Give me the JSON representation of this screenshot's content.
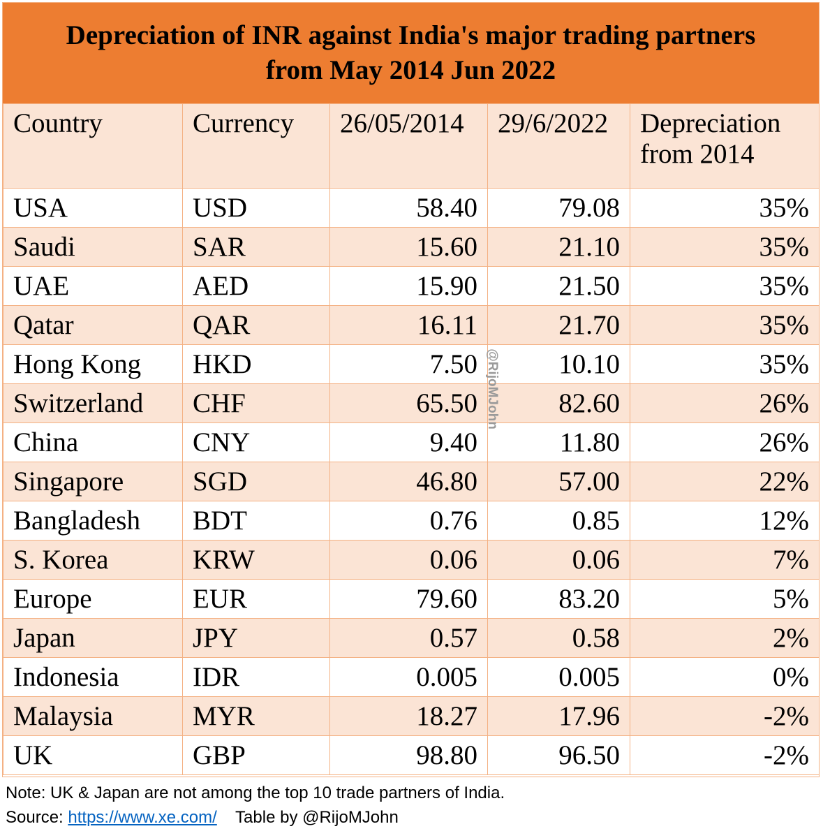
{
  "title": {
    "line1": "Depreciation of INR against India's major trading partners",
    "line2": "from May 2014 Jun 2022"
  },
  "table": {
    "headers": [
      "Country",
      "Currency",
      "26/05/2014",
      "29/6/2022",
      "Depreciation from 2014"
    ],
    "rows": [
      [
        "USA",
        "USD",
        "58.40",
        "79.08",
        "35%"
      ],
      [
        "Saudi",
        "SAR",
        "15.60",
        "21.10",
        "35%"
      ],
      [
        "UAE",
        "AED",
        "15.90",
        "21.50",
        "35%"
      ],
      [
        "Qatar",
        "QAR",
        "16.11",
        "21.70",
        "35%"
      ],
      [
        "Hong Kong",
        "HKD",
        "7.50",
        "10.10",
        "35%"
      ],
      [
        "Switzerland",
        "CHF",
        "65.50",
        "82.60",
        "26%"
      ],
      [
        "China",
        "CNY",
        "9.40",
        "11.80",
        "26%"
      ],
      [
        "Singapore",
        "SGD",
        "46.80",
        "57.00",
        "22%"
      ],
      [
        "Bangladesh",
        "BDT",
        "0.76",
        "0.85",
        "12%"
      ],
      [
        "S. Korea",
        "KRW",
        "0.06",
        "0.06",
        "7%"
      ],
      [
        "Europe",
        "EUR",
        "79.60",
        "83.20",
        "5%"
      ],
      [
        "Japan",
        "JPY",
        "0.57",
        "0.58",
        "2%"
      ],
      [
        "Indonesia",
        "IDR",
        "0.005",
        "0.005",
        "0%"
      ],
      [
        "Malaysia",
        "MYR",
        "18.27",
        "17.96",
        "-2%"
      ],
      [
        "UK",
        "GBP",
        "98.80",
        "96.50",
        "-2%"
      ]
    ]
  },
  "watermark": "@RijoMJohn",
  "footer": {
    "note": "Note: UK & Japan are not among the top 10 trade partners of India.",
    "source_label": "Source: ",
    "source_link": "https://www.xe.com/",
    "credit": "Table by @RijoMJohn"
  },
  "colors": {
    "title_bg": "#ed7d31",
    "band_bg": "#fbe4d5",
    "border": "#f4b183",
    "link": "#0563c1"
  }
}
